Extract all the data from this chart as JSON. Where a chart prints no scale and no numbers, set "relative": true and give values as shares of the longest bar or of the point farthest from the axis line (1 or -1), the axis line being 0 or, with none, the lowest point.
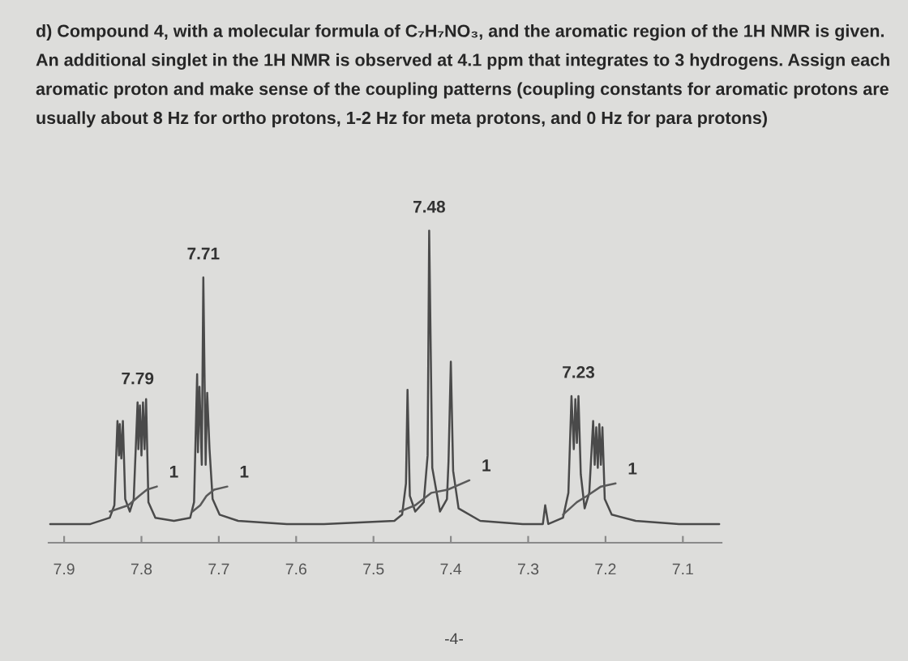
{
  "chart_data": {
    "type": "line",
    "relative": true,
    "title": "d) Compound 4, with a molecular formula of C₇H₇NO₃, and the aromatic region of the 1H NMR is given. An additional singlet in the 1H NMR is observed at 4.1 ppm that integrates to 3 hydrogens. Assign each aromatic proton and make sense of the coupling patterns (coupling constants for aromatic protons are usually about 8 Hz for ortho protons, 1-2 Hz for meta protons, and 0 Hz for para protons)",
    "xlim": [
      7.92,
      7.05
    ],
    "xticks": [
      7.9,
      7.8,
      7.7,
      7.6,
      7.5,
      7.4,
      7.3,
      7.2,
      7.1
    ],
    "series": [
      {
        "color": "#4a4a4a",
        "x": [
          7.918,
          7.866,
          7.841,
          7.835,
          7.831,
          7.829,
          7.828,
          7.826,
          7.824,
          7.821,
          7.815,
          7.81,
          7.805,
          7.804,
          7.802,
          7.8,
          7.798,
          7.796,
          7.794,
          7.791,
          7.782,
          7.758,
          7.737,
          7.732,
          7.728,
          7.727,
          7.725,
          7.722,
          7.72,
          7.717,
          7.715,
          7.712,
          7.708,
          7.699,
          7.675,
          7.612,
          7.564,
          7.473,
          7.463,
          7.458,
          7.456,
          7.453,
          7.446,
          7.435,
          7.43,
          7.428,
          7.424,
          7.414,
          7.405,
          7.403,
          7.4,
          7.397,
          7.39,
          7.362,
          7.307,
          7.281,
          7.278,
          7.274,
          7.255,
          7.248,
          7.244,
          7.241,
          7.239,
          7.237,
          7.235,
          7.232,
          7.227,
          7.221,
          7.216,
          7.214,
          7.212,
          7.21,
          7.208,
          7.206,
          7.204,
          7.201,
          7.192,
          7.161,
          7.105,
          7.053
        ],
        "values": [
          0.06,
          0.06,
          0.08,
          0.12,
          0.39,
          0.28,
          0.38,
          0.27,
          0.39,
          0.14,
          0.1,
          0.14,
          0.45,
          0.3,
          0.44,
          0.28,
          0.45,
          0.3,
          0.46,
          0.13,
          0.08,
          0.07,
          0.08,
          0.13,
          0.54,
          0.29,
          0.5,
          0.25,
          0.85,
          0.25,
          0.48,
          0.3,
          0.14,
          0.09,
          0.07,
          0.06,
          0.06,
          0.07,
          0.09,
          0.19,
          0.49,
          0.15,
          0.1,
          0.13,
          0.28,
          1,
          0.24,
          0.1,
          0.14,
          0.26,
          0.58,
          0.23,
          0.11,
          0.07,
          0.06,
          0.06,
          0.12,
          0.06,
          0.08,
          0.16,
          0.47,
          0.3,
          0.46,
          0.32,
          0.47,
          0.22,
          0.11,
          0.16,
          0.39,
          0.25,
          0.37,
          0.24,
          0.38,
          0.25,
          0.37,
          0.14,
          0.09,
          0.07,
          0.06,
          0.06
        ]
      },
      {
        "color": "#5a5a5a",
        "x": [
          7.841,
          7.817,
          7.803,
          7.793,
          7.78
        ],
        "values": [
          0.1,
          0.12,
          0.15,
          0.17,
          0.18
        ]
      },
      {
        "color": "#5a5a5a",
        "x": [
          7.734,
          7.724,
          7.716,
          7.706,
          7.689
        ],
        "values": [
          0.1,
          0.12,
          0.15,
          0.17,
          0.18
        ]
      },
      {
        "color": "#5a5a5a",
        "x": [
          7.466,
          7.446,
          7.425,
          7.404,
          7.376
        ],
        "values": [
          0.1,
          0.12,
          0.16,
          0.17,
          0.2
        ]
      },
      {
        "color": "#5a5a5a",
        "x": [
          7.255,
          7.237,
          7.224,
          7.206,
          7.187
        ],
        "values": [
          0.09,
          0.13,
          0.15,
          0.18,
          0.19
        ]
      }
    ],
    "annotations": [
      {
        "text": "7.79",
        "x": 7.805,
        "y": 0.45
      },
      {
        "text": "7.71",
        "x": 7.72,
        "y": 0.85
      },
      {
        "text": "7.48",
        "x": 7.428,
        "y": 1
      },
      {
        "text": "7.23",
        "x": 7.235,
        "y": 0.47
      },
      {
        "text": "1",
        "x": 7.78,
        "y": 0.18
      },
      {
        "text": "1",
        "x": 7.689,
        "y": 0.18
      },
      {
        "text": "1",
        "x": 7.376,
        "y": 0.2
      },
      {
        "text": "1",
        "x": 7.187,
        "y": 0.19
      },
      "-4-"
    ]
  }
}
